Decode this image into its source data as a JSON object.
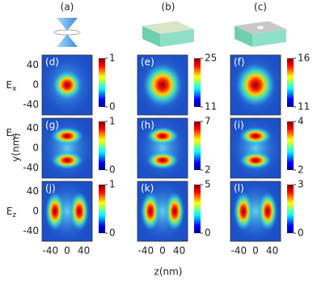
{
  "top_labels": [
    "(a)",
    "(b)",
    "(c)"
  ],
  "rows": [
    {
      "label": "E",
      "sub": "x"
    },
    {
      "label": "E",
      "sub": "y"
    },
    {
      "label": "E",
      "sub": "z"
    }
  ],
  "y_label": "y(nm)",
  "x_label": "z(nm)",
  "axis_range": [
    -60,
    60
  ],
  "x_ticks": [
    -40,
    0,
    40
  ],
  "y_ticks": [
    40,
    0,
    -40
  ],
  "panels": [
    {
      "label": "(d)",
      "cbar_ticks": [
        1,
        0
      ]
    },
    {
      "label": "(e)",
      "cbar_ticks": [
        25,
        11
      ]
    },
    {
      "label": "(f)",
      "cbar_ticks": [
        16,
        11
      ]
    },
    {
      "label": "(g)",
      "cbar_ticks": [
        1,
        0
      ]
    },
    {
      "label": "(h)",
      "cbar_ticks": [
        7,
        2
      ]
    },
    {
      "label": "(i)",
      "cbar_ticks": [
        4,
        2
      ]
    },
    {
      "label": "(j)",
      "cbar_ticks": [
        1,
        0
      ]
    },
    {
      "label": "(k)",
      "cbar_ticks": [
        5,
        0
      ]
    },
    {
      "label": "(l)",
      "cbar_ticks": [
        3,
        0
      ]
    }
  ]
}
